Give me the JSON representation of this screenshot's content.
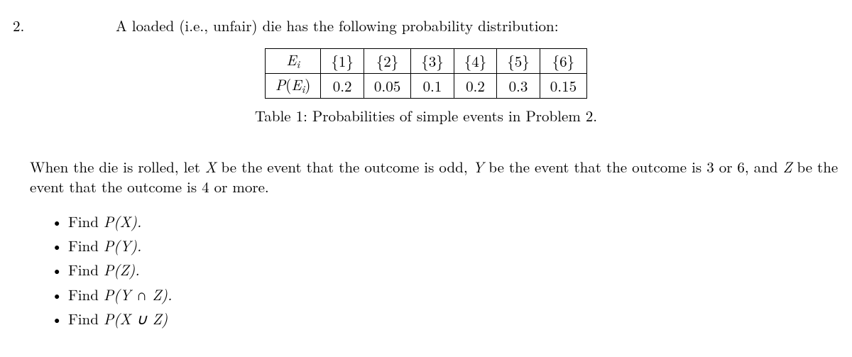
{
  "question_number": "2.",
  "lead_text": "A loaded (i.e., unfair) die has the following probability distribution:",
  "table": {
    "row1": {
      "h": "E_i",
      "c": [
        "{1}",
        "{2}",
        "{3}",
        "{4}",
        "{5}",
        "{6}"
      ]
    },
    "row2": {
      "h": "P(E_i)",
      "c": [
        "0.2",
        "0.05",
        "0.1",
        "0.2",
        "0.3",
        "0.15"
      ]
    }
  },
  "caption": "Table 1: Probabilities of simple events in Problem 2.",
  "paragraph_pre": "When the die is rolled, let ",
  "paragraph_mid1": " be the event that the outcome is odd, ",
  "paragraph_mid2": " be the event that the outcome is 3 or 6, and ",
  "paragraph_mid3": " be the event that the outcome is 4 or more.",
  "sym": {
    "X": "X",
    "Y": "Y",
    "Z": "Z"
  },
  "tasks": {
    "t1_pre": "Find ",
    "t1_expr": "P(X).",
    "t2_pre": "Find ",
    "t2_expr": "P(Y).",
    "t3_pre": "Find ",
    "t3_expr": "P(Z).",
    "t4_pre": "Find ",
    "t4_expr": "P(Y ∩ Z).",
    "t5_pre": "Find ",
    "t5_expr": "P(X ∪ Z)"
  },
  "style": {
    "font_size_pt": 21,
    "text_color": "#000000",
    "background_color": "#ffffff",
    "border_color": "#000000"
  }
}
